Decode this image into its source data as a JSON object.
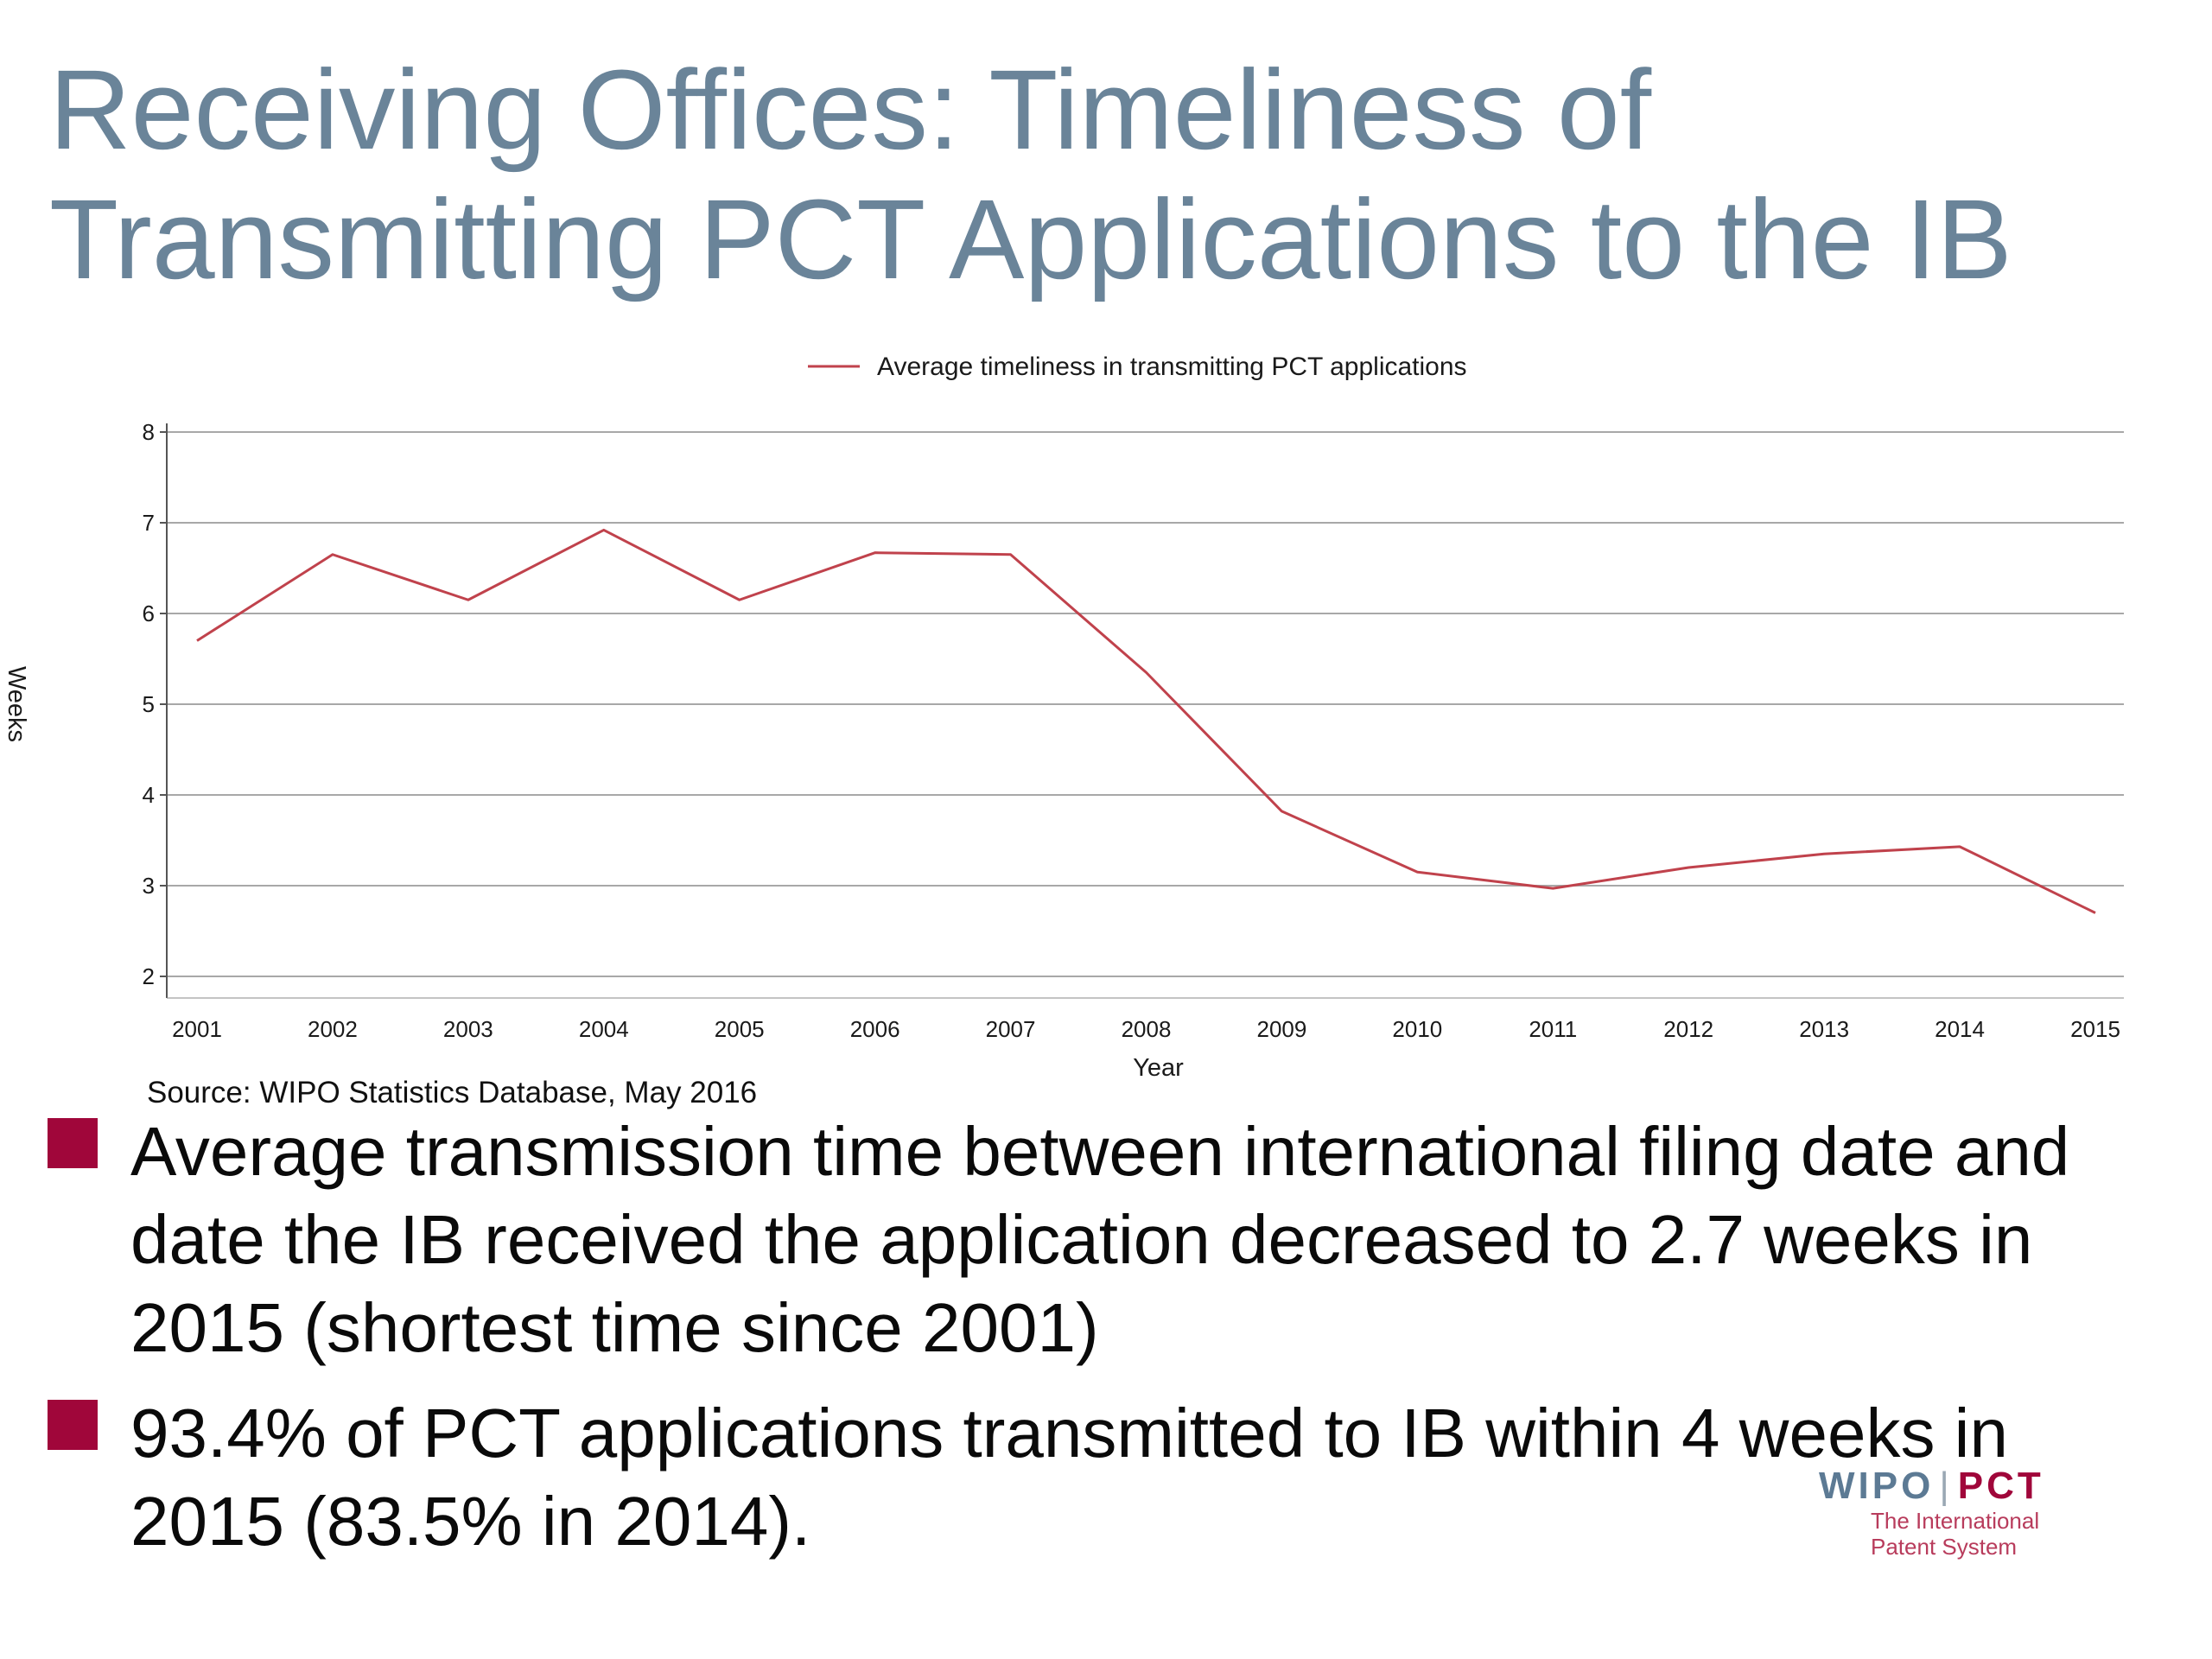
{
  "slide": {
    "title_line1": "Receiving Offices:  Timeliness of",
    "title_line2": "Transmitting PCT Applications to the IB"
  },
  "chart_data": {
    "type": "line",
    "title": "",
    "xlabel": "Year",
    "ylabel": "Weeks",
    "categories": [
      "2001",
      "2002",
      "2003",
      "2004",
      "2005",
      "2006",
      "2007",
      "2008",
      "2009",
      "2010",
      "2011",
      "2012",
      "2013",
      "2014",
      "2015"
    ],
    "series": [
      {
        "name": "Average timeliness in transmitting PCT applications",
        "color": "#c0424c",
        "values": [
          5.7,
          6.65,
          6.15,
          6.92,
          6.15,
          6.67,
          6.65,
          5.35,
          3.82,
          3.15,
          2.97,
          3.2,
          3.35,
          3.43,
          2.7
        ]
      }
    ],
    "yticks": [
      2,
      3,
      4,
      5,
      6,
      7,
      8
    ],
    "ylim": [
      2,
      8
    ],
    "grid": true,
    "legend_position": "top-center"
  },
  "source": "Source: WIPO Statistics Database, May 2016",
  "bullets": [
    "Average transmission time between international filing date and date the IB received the application decreased to 2.7 weeks in 2015 (shortest time since 2001)",
    "93.4% of PCT applications transmitted to IB within 4 weeks in 2015 (83.5% in 2014)."
  ],
  "logo": {
    "wipo": "WIPO",
    "separator": "|",
    "pct": "PCT",
    "tagline_line1": "The International",
    "tagline_line2": "Patent System"
  },
  "colors": {
    "title": "#6a8499",
    "bullet_marker": "#a0063a",
    "series_line": "#c0424c"
  }
}
